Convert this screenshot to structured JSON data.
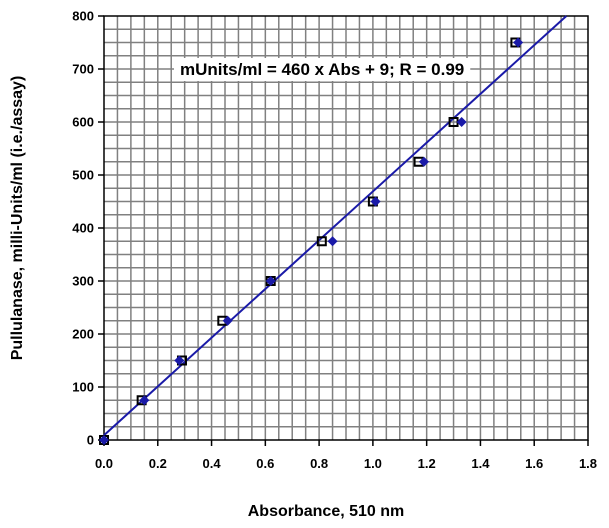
{
  "chart_data": {
    "type": "scatter",
    "title": "",
    "xlabel": "Absorbance,  510 nm",
    "ylabel": "Pullulanase,   milli-Units/ml  (i.e./assay)",
    "xlim": [
      0,
      1.8
    ],
    "ylim": [
      0,
      800
    ],
    "xticks": [
      0.0,
      0.2,
      0.4,
      0.6,
      0.8,
      1.0,
      1.2,
      1.4,
      1.6,
      1.8
    ],
    "xtick_labels": [
      "0.0",
      "0.2",
      "0.4",
      "0.6",
      "0.8",
      "1.0",
      "1.2",
      "1.4",
      "1.6",
      "1.8"
    ],
    "yticks": [
      0,
      100,
      200,
      300,
      400,
      500,
      600,
      700,
      800
    ],
    "ytick_labels": [
      "0",
      "100",
      "200",
      "300",
      "400",
      "500",
      "600",
      "700",
      "800"
    ],
    "grid": true,
    "annotation": "mUnits/ml = 460 x Abs + 9; R = 0.99",
    "series": [
      {
        "marker": "open-square",
        "color": "#000000",
        "x": [
          0.0,
          0.14,
          0.29,
          0.44,
          0.62,
          0.81,
          1.0,
          1.17,
          1.3,
          1.53
        ],
        "y": [
          0,
          75,
          150,
          225,
          300,
          375,
          450,
          525,
          600,
          750
        ]
      },
      {
        "marker": "filled-diamond",
        "color": "#1a1aa8",
        "x": [
          0.0,
          0.15,
          0.28,
          0.46,
          0.62,
          0.85,
          1.01,
          1.19,
          1.33,
          1.54
        ],
        "y": [
          0,
          75,
          150,
          225,
          300,
          375,
          450,
          525,
          600,
          750
        ]
      }
    ],
    "fit_line": {
      "slope": 460,
      "intercept": 9,
      "color": "#1a1aa8"
    }
  }
}
